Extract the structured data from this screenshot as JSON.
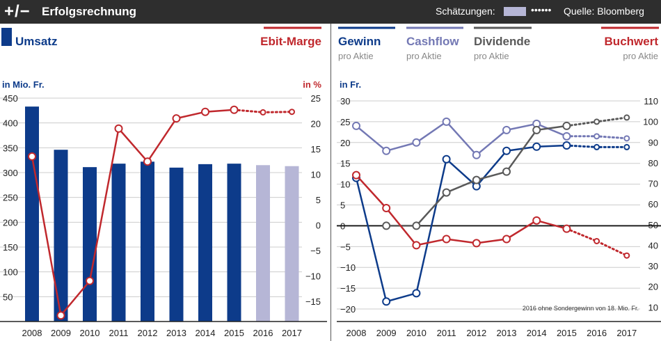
{
  "header": {
    "icon_text": "+/−",
    "title": "Erfolgsrechnung",
    "estimates_label": "Schätzungen:",
    "estimate_dots": "••••••",
    "source": "Quelle: Bloomberg"
  },
  "colors": {
    "umsatz": "#0d3b8a",
    "estimate": "#b6b6d6",
    "ebit": "#c0282d",
    "gewinn": "#0d3b8a",
    "cashflow": "#7378b4",
    "dividende": "#595959",
    "buchwert": "#c0282d"
  },
  "chart_data": [
    {
      "type": "bar+line",
      "title": "Erfolgsrechnung",
      "legend": {
        "bars": "Umsatz",
        "line": "Ebit-Marge"
      },
      "left_axis": {
        "label": "in Mio. Fr.",
        "range": [
          0,
          450
        ],
        "ticks": [
          50,
          100,
          150,
          200,
          250,
          300,
          350,
          400,
          450
        ],
        "tick_labels": [
          "50",
          "100",
          "150",
          "200",
          "250",
          "300",
          "350",
          "400",
          "450"
        ]
      },
      "right_axis": {
        "label": "in %",
        "range": [
          -19,
          25
        ],
        "ticks": [
          -15,
          -10,
          -5,
          0,
          5,
          10,
          15,
          20,
          25
        ],
        "tick_labels": [
          "−15",
          "−10",
          "−5",
          "0",
          "5",
          "10",
          "15",
          "20",
          "25"
        ]
      },
      "categories": [
        "2008",
        "2009",
        "2010",
        "2011",
        "2012",
        "2013",
        "2014",
        "2015",
        "2016",
        "2017"
      ],
      "estimate_from_index": 8,
      "series": [
        {
          "name": "Umsatz",
          "axis": "left",
          "kind": "bar",
          "values": [
            433,
            346,
            311,
            318,
            322,
            310,
            317,
            318,
            315,
            313
          ]
        },
        {
          "name": "Ebit-Marge",
          "axis": "right",
          "kind": "line",
          "values": [
            13.5,
            -17.8,
            -11.0,
            19.0,
            12.5,
            21.0,
            22.3,
            22.7,
            22.2,
            22.3
          ]
        }
      ]
    },
    {
      "type": "line",
      "legend": [
        {
          "name": "Gewinn",
          "sub": "pro Aktie"
        },
        {
          "name": "Cashflow",
          "sub": "pro Aktie"
        },
        {
          "name": "Dividende",
          "sub": "pro Aktie"
        },
        {
          "name": "Buchwert",
          "sub": "pro Aktie"
        }
      ],
      "left_axis": {
        "label": "in Fr.",
        "range": [
          -23,
          30
        ],
        "ticks": [
          -20,
          -15,
          -10,
          -5,
          0,
          5,
          10,
          15,
          20,
          25,
          30
        ],
        "tick_labels": [
          "−20",
          "−15",
          "−10",
          "−5",
          "0",
          "5",
          "10",
          "15",
          "20",
          "25",
          "30"
        ]
      },
      "right_axis": {
        "range": [
          3,
          110
        ],
        "ticks": [
          10,
          20,
          30,
          40,
          50,
          60,
          70,
          80,
          90,
          100,
          110
        ],
        "tick_labels": [
          "10",
          "20",
          "30",
          "40",
          "50",
          "60",
          "70",
          "80",
          "90",
          "100",
          "110"
        ]
      },
      "categories": [
        "2008",
        "2009",
        "2010",
        "2011",
        "2012",
        "2013",
        "2014",
        "2015",
        "2016",
        "2017"
      ],
      "estimate_from_index": 7,
      "series": [
        {
          "name": "Gewinn",
          "axis": "left",
          "values": [
            11.5,
            -18.2,
            -16.2,
            16.0,
            9.5,
            18.0,
            19.0,
            19.3,
            18.9,
            18.9
          ]
        },
        {
          "name": "Cashflow",
          "axis": "left",
          "values": [
            24.0,
            18.0,
            20.0,
            25.0,
            17.0,
            23.0,
            24.5,
            21.5,
            21.5,
            21.0
          ]
        },
        {
          "name": "Dividende",
          "axis": "left",
          "values": [
            null,
            0,
            0,
            8.0,
            11.0,
            13.0,
            23.0,
            24.0,
            25.0,
            26.0
          ]
        },
        {
          "name": "Buchwert",
          "axis": "right",
          "values": [
            74,
            58,
            40,
            43,
            41,
            43,
            52,
            48,
            42,
            35
          ]
        }
      ],
      "annotation": "2016  ohne Sondergewinn von 18. Mio. Fr."
    }
  ]
}
